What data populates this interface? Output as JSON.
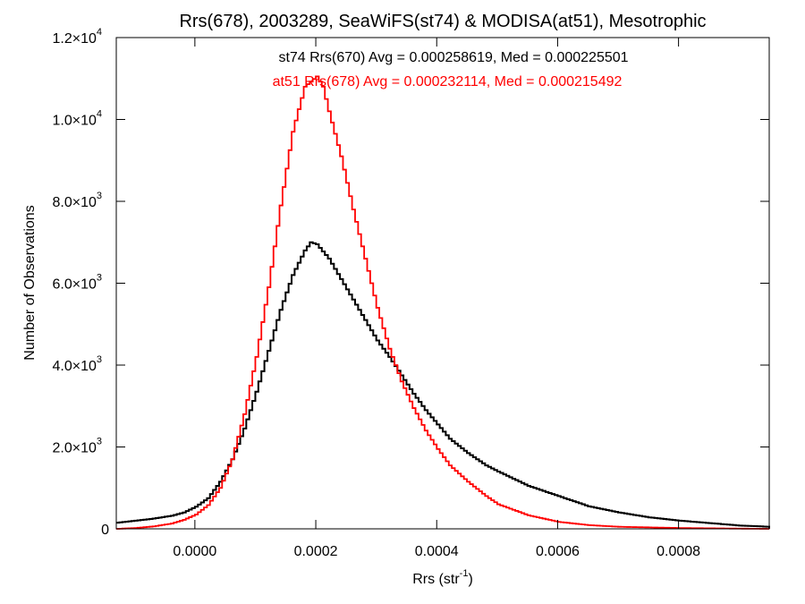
{
  "chart_data": {
    "type": "line",
    "title": "Rrs(678), 2003289, SeaWiFS(st74) & MODISA(at51), Mesotrophic",
    "xlabel": "Rrs (str",
    "xlabel_sup": "-1",
    "xlabel_end": ")",
    "ylabel": "Number of Observations",
    "xlim": [
      -0.00013,
      0.00095
    ],
    "ylim": [
      0,
      12000
    ],
    "x_ticks": [
      {
        "value": 0.0,
        "label": "0.0000"
      },
      {
        "value": 0.0002,
        "label": "0.0002"
      },
      {
        "value": 0.0004,
        "label": "0.0004"
      },
      {
        "value": 0.0006,
        "label": "0.0006"
      },
      {
        "value": 0.0008,
        "label": "0.0008"
      }
    ],
    "y_ticks": [
      {
        "value": 0,
        "mant": "0",
        "exp": ""
      },
      {
        "value": 2000,
        "mant": "2.0×10",
        "exp": "3"
      },
      {
        "value": 4000,
        "mant": "4.0×10",
        "exp": "3"
      },
      {
        "value": 6000,
        "mant": "6.0×10",
        "exp": "3"
      },
      {
        "value": 8000,
        "mant": "8.0×10",
        "exp": "3"
      },
      {
        "value": 10000,
        "mant": "1.0×10",
        "exp": "4"
      },
      {
        "value": 12000,
        "mant": "1.2×10",
        "exp": "4"
      }
    ],
    "annotations": [
      {
        "text": "st74 Rrs(670) Avg = 0.000258619, Med = 0.000225501",
        "color": "#000000"
      },
      {
        "text": "at51 Rrs(678) Avg = 0.000232114, Med = 0.000215492",
        "color": "#ff0000"
      }
    ],
    "series": [
      {
        "color": "#000000",
        "points": [
          [
            -0.00013,
            150
          ],
          [
            -0.0001,
            200
          ],
          [
            -7e-05,
            250
          ],
          [
            -4e-05,
            320
          ],
          [
            -2e-05,
            400
          ],
          [
            0.0,
            540
          ],
          [
            2e-05,
            750
          ],
          [
            4e-05,
            1150
          ],
          [
            6e-05,
            1700
          ],
          [
            8e-05,
            2450
          ],
          [
            0.0001,
            3350
          ],
          [
            0.00012,
            4350
          ],
          [
            0.00014,
            5350
          ],
          [
            0.00016,
            6200
          ],
          [
            0.00018,
            6800
          ],
          [
            0.00019,
            7000
          ],
          [
            0.0002,
            6950
          ],
          [
            0.00022,
            6600
          ],
          [
            0.00024,
            6100
          ],
          [
            0.00026,
            5600
          ],
          [
            0.00028,
            5100
          ],
          [
            0.0003,
            4600
          ],
          [
            0.00032,
            4200
          ],
          [
            0.00034,
            3750
          ],
          [
            0.00036,
            3300
          ],
          [
            0.00038,
            2900
          ],
          [
            0.0004,
            2550
          ],
          [
            0.00042,
            2200
          ],
          [
            0.00045,
            1850
          ],
          [
            0.00048,
            1550
          ],
          [
            0.0005,
            1400
          ],
          [
            0.00055,
            1050
          ],
          [
            0.0006,
            800
          ],
          [
            0.00065,
            550
          ],
          [
            0.0007,
            400
          ],
          [
            0.00075,
            280
          ],
          [
            0.0008,
            200
          ],
          [
            0.00085,
            140
          ],
          [
            0.0009,
            80
          ],
          [
            0.00095,
            50
          ]
        ]
      },
      {
        "color": "#ff0000",
        "points": [
          [
            -0.00013,
            0
          ],
          [
            -0.0001,
            20
          ],
          [
            -7e-05,
            60
          ],
          [
            -4e-05,
            130
          ],
          [
            -2e-05,
            220
          ],
          [
            0.0,
            350
          ],
          [
            2e-05,
            580
          ],
          [
            4e-05,
            1000
          ],
          [
            6e-05,
            1700
          ],
          [
            8e-05,
            2800
          ],
          [
            0.0001,
            4200
          ],
          [
            0.00012,
            5900
          ],
          [
            0.00014,
            7900
          ],
          [
            0.00016,
            9700
          ],
          [
            0.00018,
            10800
          ],
          [
            0.0002,
            11050
          ],
          [
            0.00021,
            10800
          ],
          [
            0.00022,
            10200
          ],
          [
            0.00024,
            9100
          ],
          [
            0.00026,
            7800
          ],
          [
            0.00028,
            6600
          ],
          [
            0.0003,
            5400
          ],
          [
            0.00032,
            4400
          ],
          [
            0.00034,
            3600
          ],
          [
            0.00036,
            2950
          ],
          [
            0.00038,
            2400
          ],
          [
            0.0004,
            1950
          ],
          [
            0.00042,
            1550
          ],
          [
            0.00045,
            1150
          ],
          [
            0.00048,
            800
          ],
          [
            0.0005,
            600
          ],
          [
            0.00055,
            330
          ],
          [
            0.0006,
            170
          ],
          [
            0.00065,
            90
          ],
          [
            0.0007,
            50
          ],
          [
            0.0008,
            20
          ],
          [
            0.0009,
            5
          ],
          [
            0.00095,
            0
          ]
        ]
      }
    ]
  }
}
